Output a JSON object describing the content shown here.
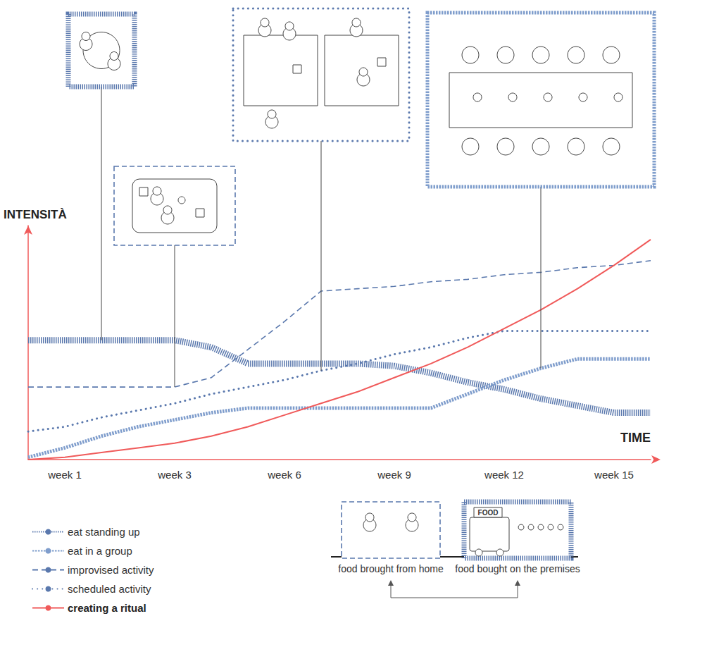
{
  "chart_data": {
    "type": "line",
    "y_label": "INTENSITÀ",
    "x_label": "TIME",
    "categories": [
      null,
      "week 1",
      null,
      null,
      "week 3",
      null,
      null,
      "week 6",
      null,
      null,
      "week 9",
      null,
      null,
      "week 12",
      null,
      null,
      "week 15",
      null
    ],
    "ylim": [
      0,
      100
    ],
    "tick_labels": "x",
    "grid": false,
    "legend": "bottom-left",
    "series": [
      {
        "name": "eat standing up",
        "color": "#5a78ad",
        "line_style": "hatched",
        "values": [
          51,
          51,
          51,
          51,
          51,
          48,
          41,
          41,
          41,
          41,
          40,
          37,
          33,
          30,
          26,
          23,
          20,
          20
        ]
      },
      {
        "name": "eat in a group",
        "color": "#7f9dcc",
        "line_style": "cross-hatched",
        "values": [
          1,
          5,
          10,
          14,
          17,
          20,
          22,
          22,
          22,
          22,
          22,
          22,
          28,
          34,
          39,
          43,
          43,
          43
        ]
      },
      {
        "name": "improvised activity",
        "color": "#5a78ad",
        "line_style": "dashed",
        "values": [
          31,
          31,
          31,
          31,
          31,
          35,
          47,
          59,
          72,
          73,
          74,
          76,
          77,
          79,
          80,
          82,
          83,
          85
        ]
      },
      {
        "name": "scheduled activity",
        "color": "#5a78ad",
        "line_style": "dotted",
        "values": [
          12,
          14,
          18,
          21,
          24,
          28,
          31,
          34,
          38,
          41,
          45,
          48,
          52,
          55,
          55,
          55,
          55,
          55
        ]
      },
      {
        "name": "creating a ritual",
        "color": "#f05a5a",
        "line_style": "solid",
        "values": [
          0,
          1,
          3,
          5,
          7,
          10,
          14,
          19,
          24,
          29,
          35,
          41,
          48,
          56,
          64,
          73,
          83,
          94
        ]
      }
    ],
    "annotations": [
      "food brought from home",
      "food bought on the premises",
      "FOOD"
    ]
  }
}
